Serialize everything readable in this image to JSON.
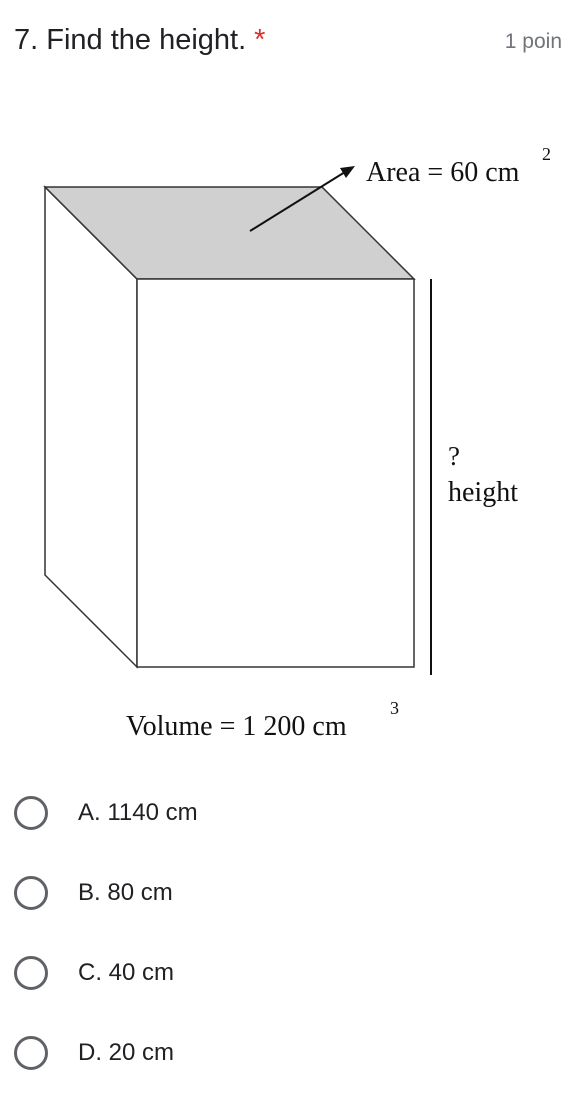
{
  "question": {
    "number_title": "7. Find the height.",
    "required_marker": "*",
    "points": "1 poin"
  },
  "figure": {
    "area_label": "Area = 60 cm",
    "area_exponent": "2",
    "height_question": "?",
    "height_label": "height",
    "volume_label": "Volume = 1 200 cm",
    "volume_exponent": "3",
    "top_face_color": "#d0d0d0"
  },
  "options": [
    {
      "label": "A. 1140 cm"
    },
    {
      "label": "B. 80 cm"
    },
    {
      "label": "C. 40 cm"
    },
    {
      "label": "D. 20 cm"
    }
  ],
  "colors": {
    "required": "#d93025",
    "radio_border": "#5f6368",
    "muted_text": "#70757a"
  }
}
